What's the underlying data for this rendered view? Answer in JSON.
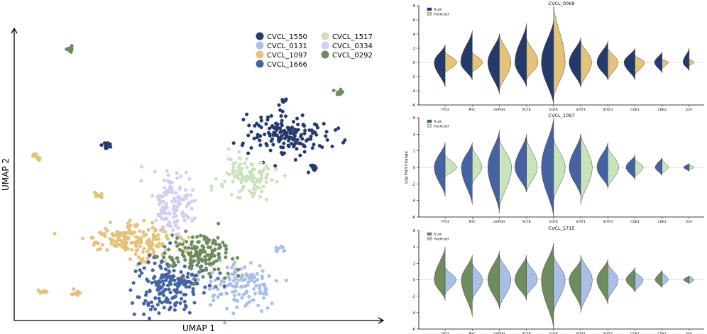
{
  "chart_data": [
    {
      "type": "scatter",
      "title": "",
      "xlabel": "UMAP 1",
      "ylabel": "UMAP 2",
      "legend_position": "top-right",
      "series": [
        {
          "name": "CVCL_1550",
          "color": "#243a6b",
          "clusters": [
            {
              "center": [
                7.4,
                6.4
              ],
              "spread": [
                1.0,
                0.65
              ],
              "n": 170
            },
            {
              "center": [
                8.1,
                5.2
              ],
              "spread": [
                0.12,
                0.15
              ],
              "n": 10
            },
            {
              "center": [
                7.3,
                7.5
              ],
              "spread": [
                0.12,
                0.08
              ],
              "n": 7
            },
            {
              "center": [
                2.5,
                6.0
              ],
              "spread": [
                0.15,
                0.1
              ],
              "n": 12
            }
          ]
        },
        {
          "name": "CVCL_0131",
          "color": "#a9bfe6",
          "clusters": [
            {
              "center": [
                6.1,
                1.2
              ],
              "spread": [
                0.85,
                0.75
              ],
              "n": 130
            },
            {
              "center": [
                7.2,
                2.4
              ],
              "spread": [
                0.12,
                0.1
              ],
              "n": 9
            }
          ]
        },
        {
          "name": "CVCL_1097",
          "color": "#e3c27c",
          "clusters": [
            {
              "center": [
                3.2,
                2.8
              ],
              "spread": [
                1.1,
                0.45
              ],
              "n": 170
            },
            {
              "center": [
                3.5,
                2.2
              ],
              "spread": [
                0.35,
                0.25
              ],
              "n": 20
            },
            {
              "center": [
                0.6,
                5.6
              ],
              "spread": [
                0.12,
                0.12
              ],
              "n": 12
            },
            {
              "center": [
                2.3,
                4.3
              ],
              "spread": [
                0.1,
                0.12
              ],
              "n": 10
            },
            {
              "center": [
                0.7,
                1.0
              ],
              "spread": [
                0.15,
                0.1
              ],
              "n": 10
            },
            {
              "center": [
                1.7,
                1.0
              ],
              "spread": [
                0.1,
                0.12
              ],
              "n": 10
            }
          ]
        },
        {
          "name": "CVCL_1666",
          "color": "#4563a3",
          "clusters": [
            {
              "center": [
                4.2,
                1.2
              ],
              "spread": [
                0.85,
                0.9
              ],
              "n": 190
            }
          ]
        },
        {
          "name": "CVCL_1517",
          "color": "#c9e3bd",
          "clusters": [
            {
              "center": [
                6.3,
                4.9
              ],
              "spread": [
                0.65,
                0.7
              ],
              "n": 110
            }
          ]
        },
        {
          "name": "CVCL_0334",
          "color": "#d6cdf2",
          "clusters": [
            {
              "center": [
                4.3,
                4.0
              ],
              "spread": [
                0.55,
                1.0
              ],
              "n": 130
            }
          ]
        },
        {
          "name": "CVCL_0292",
          "color": "#6e8c5e",
          "clusters": [
            {
              "center": [
                5.1,
                2.2
              ],
              "spread": [
                0.85,
                0.65
              ],
              "n": 160
            },
            {
              "center": [
                1.5,
                9.3
              ],
              "spread": [
                0.12,
                0.08
              ],
              "n": 12
            },
            {
              "center": [
                8.8,
                7.8
              ],
              "spread": [
                0.12,
                0.1
              ],
              "n": 12
            }
          ]
        }
      ],
      "xlim": [
        0,
        10
      ],
      "ylim": [
        0,
        10
      ]
    },
    {
      "type": "violin",
      "title": "CVCL_0069",
      "ylabel": "",
      "ylim": [
        -6,
        8
      ],
      "yticks": [
        "-6",
        "-4",
        "-2",
        "0",
        "2",
        "4",
        "6",
        "8"
      ],
      "categories": [
        "TP53",
        "MYC",
        "GAPDH",
        "ACTB",
        "EGFR",
        "STAT1",
        "STAT3",
        "CDK1",
        "CDK2",
        "EGF"
      ],
      "legend": [
        "Truth",
        "Predicted"
      ],
      "truth_color": "#243a6b",
      "pred_color": "#e3c27c",
      "truth": {
        "min": [
          -3.5,
          -2.5,
          -4.5,
          -3.5,
          -6,
          -3.5,
          -2.5,
          -2.5,
          -1.5,
          -1.2
        ],
        "max": [
          2.5,
          4.5,
          4.0,
          5.5,
          6.0,
          3.5,
          3.0,
          2.0,
          1.5,
          2.0
        ],
        "width": [
          0.8,
          0.85,
          0.85,
          0.85,
          0.9,
          0.85,
          0.8,
          0.8,
          0.55,
          0.45
        ]
      },
      "predicted": {
        "min": [
          -1.5,
          -1.5,
          -4.0,
          -2.5,
          -5.0,
          -3.5,
          -2.5,
          -1.8,
          -0.9,
          -0.5
        ],
        "max": [
          1.5,
          1.5,
          4.0,
          3.5,
          8.0,
          3.0,
          2.0,
          1.0,
          0.5,
          0.5
        ],
        "width": [
          0.85,
          0.75,
          0.85,
          0.85,
          0.85,
          0.8,
          0.75,
          0.7,
          0.45,
          0.35
        ]
      }
    },
    {
      "type": "violin",
      "title": "CVCL_1097",
      "ylabel": "Log Fold Change",
      "ylim": [
        -6,
        6
      ],
      "yticks": [
        "-6",
        "-4",
        "-2",
        "0",
        "2",
        "4",
        "6"
      ],
      "categories": [
        "TP53",
        "MYC",
        "GAPDH",
        "ACTB",
        "EGFR",
        "STAT1",
        "STAT3",
        "CDK1",
        "CDK2",
        "EGF"
      ],
      "legend": [
        "Truth",
        "Predicted"
      ],
      "truth_color": "#4563a3",
      "pred_color": "#c9e3bd",
      "truth": {
        "min": [
          -3.5,
          -4.5,
          -5.5,
          -3.0,
          -6.0,
          -3.5,
          -2.5,
          -1.5,
          -1.0,
          -0.5
        ],
        "max": [
          3.0,
          3.0,
          4.5,
          4.0,
          6.0,
          4.0,
          3.0,
          1.5,
          1.2,
          0.5
        ],
        "width": [
          0.8,
          0.8,
          0.85,
          0.85,
          0.9,
          0.85,
          0.8,
          0.65,
          0.5,
          0.4
        ]
      },
      "predicted": {
        "min": [
          -1.2,
          -2.0,
          -5.0,
          -3.0,
          -4.0,
          -4.5,
          -2.5,
          -1.2,
          -0.8,
          -0.3
        ],
        "max": [
          1.5,
          2.5,
          3.5,
          3.5,
          3.5,
          4.0,
          2.5,
          1.0,
          1.0,
          0.3
        ],
        "width": [
          0.85,
          0.7,
          0.9,
          0.8,
          0.85,
          0.85,
          0.8,
          0.6,
          0.45,
          0.35
        ]
      }
    },
    {
      "type": "violin",
      "title": "CVCL_1715",
      "ylabel": "",
      "ylim": [
        -6,
        6
      ],
      "yticks": [
        "-6",
        "-4",
        "-2",
        "0",
        "2",
        "4",
        "6"
      ],
      "categories": [
        "TP53",
        "MYC",
        "GAPDH",
        "ACTB",
        "EGFR",
        "STAT1",
        "STAT3",
        "CDK1",
        "CDK2",
        "EGF"
      ],
      "legend": [
        "Truth",
        "Predicted"
      ],
      "truth_color": "#6e8c5e",
      "pred_color": "#a9bfe6",
      "truth": {
        "min": [
          -2.5,
          -4.5,
          -3.5,
          -2.5,
          -6.0,
          -3.5,
          -3.0,
          -1.5,
          -1.0,
          -0.5
        ],
        "max": [
          4.0,
          3.0,
          3.5,
          3.0,
          4.5,
          2.5,
          2.5,
          1.5,
          1.2,
          0.5
        ],
        "width": [
          0.8,
          0.8,
          0.85,
          0.85,
          0.9,
          0.85,
          0.8,
          0.65,
          0.5,
          0.4
        ]
      },
      "predicted": {
        "min": [
          -1.8,
          -2.5,
          -3.5,
          -2.0,
          -4.0,
          -4.0,
          -2.5,
          -1.5,
          -0.8,
          -0.5
        ],
        "max": [
          1.5,
          2.0,
          3.0,
          2.5,
          3.0,
          3.0,
          2.0,
          1.0,
          1.0,
          0.5
        ],
        "width": [
          0.8,
          0.75,
          0.85,
          0.8,
          0.85,
          0.85,
          0.75,
          0.6,
          0.45,
          0.35
        ]
      }
    }
  ]
}
